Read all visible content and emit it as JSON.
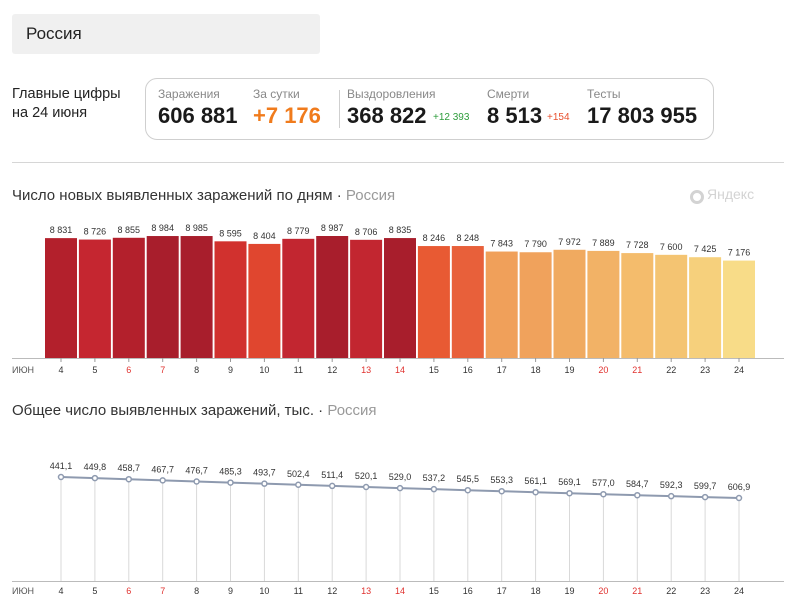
{
  "region": {
    "name": "Россия"
  },
  "summary": {
    "label_line1": "Главные цифры",
    "label_line2": "на 24 июня",
    "stats": [
      {
        "label": "Заражения",
        "value": "606 881",
        "color": "#222222"
      },
      {
        "label": "За сутки",
        "value": "+7 176",
        "color": "#f07b1c"
      },
      {
        "label": "Выздоровления",
        "value": "368 822",
        "delta": "+12 393",
        "delta_color": "#2e9d3c",
        "color": "#222222"
      },
      {
        "label": "Смерти",
        "value": "8 513",
        "delta": "+154",
        "delta_color": "#e8502e",
        "color": "#222222"
      },
      {
        "label": "Тесты",
        "value": "17 803 955",
        "color": "#222222"
      }
    ]
  },
  "watermark": "Яндекс",
  "chart_data": [
    {
      "type": "bar",
      "title": "Число новых выявленных заражений по дням",
      "subtitle": "Россия",
      "x_prefix": "ИЮН",
      "categories": [
        "4",
        "5",
        "6",
        "7",
        "8",
        "9",
        "10",
        "11",
        "12",
        "13",
        "14",
        "15",
        "16",
        "17",
        "18",
        "19",
        "20",
        "21",
        "22",
        "23",
        "24"
      ],
      "values": [
        8831,
        8726,
        8855,
        8984,
        8985,
        8595,
        8404,
        8779,
        8987,
        8706,
        8835,
        8246,
        8248,
        7843,
        7790,
        7972,
        7889,
        7728,
        7600,
        7425,
        7176
      ],
      "value_labels": [
        "8 831",
        "8 726",
        "8 855",
        "8 984",
        "8 985",
        "8 595",
        "8 404",
        "8 779",
        "8 987",
        "8 706",
        "8 835",
        "8 246",
        "8 248",
        "7 843",
        "7 790",
        "7 972",
        "7 889",
        "7 728",
        "7 600",
        "7 425",
        "7 176"
      ],
      "colors": [
        "#b3202c",
        "#c52630",
        "#b3202c",
        "#a81e2c",
        "#a81e2c",
        "#d1312e",
        "#e0462f",
        "#c22630",
        "#a81e2c",
        "#c22630",
        "#a81e2c",
        "#e85a33",
        "#e8603a",
        "#f0a05a",
        "#f0a25c",
        "#f0aa60",
        "#f2b266",
        "#f4bc6c",
        "#f4c472",
        "#f6d07c",
        "#f8dc88"
      ],
      "holiday_categories": [
        "6",
        "7",
        "13",
        "14",
        "20",
        "21"
      ],
      "ylim": [
        0,
        9000
      ]
    },
    {
      "type": "line",
      "title": "Общее число выявленных заражений, тыс.",
      "subtitle": "Россия",
      "x_prefix": "ИЮН",
      "categories": [
        "4",
        "5",
        "6",
        "7",
        "8",
        "9",
        "10",
        "11",
        "12",
        "13",
        "14",
        "15",
        "16",
        "17",
        "18",
        "19",
        "20",
        "21",
        "22",
        "23",
        "24"
      ],
      "values": [
        441.1,
        449.8,
        458.7,
        467.7,
        476.7,
        485.3,
        493.7,
        502.4,
        511.4,
        520.1,
        529.0,
        537.2,
        545.5,
        553.3,
        561.1,
        569.1,
        577.0,
        584.7,
        592.3,
        599.7,
        606.9
      ],
      "value_labels": [
        "441,1",
        "449,8",
        "458,7",
        "467,7",
        "476,7",
        "485,3",
        "493,7",
        "502,4",
        "511,4",
        "520,1",
        "529,0",
        "537,2",
        "545,5",
        "553,3",
        "561,1",
        "569,1",
        "577,0",
        "584,7",
        "592,3",
        "599,7",
        "606,9"
      ],
      "holiday_categories": [
        "6",
        "7",
        "13",
        "14",
        "20",
        "21"
      ],
      "line_color": "#8e9aaf"
    }
  ]
}
